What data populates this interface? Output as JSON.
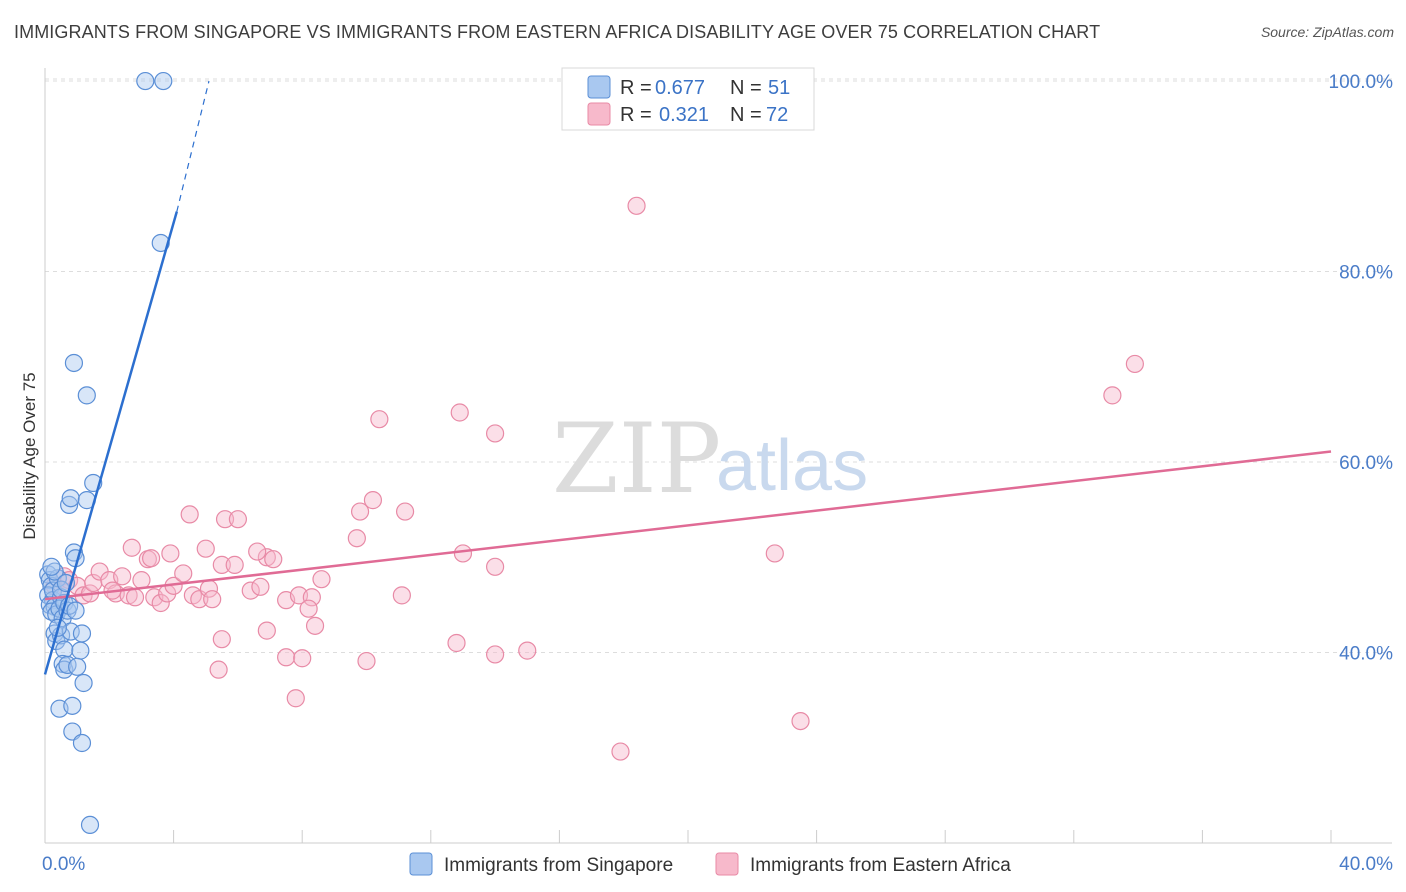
{
  "title": "IMMIGRANTS FROM SINGAPORE VS IMMIGRANTS FROM EASTERN AFRICA DISABILITY AGE OVER 75 CORRELATION CHART",
  "source": "Source: ZipAtlas.com",
  "watermark": {
    "zip": "ZIP",
    "atlas": "atlas"
  },
  "colors": {
    "blue_fill": "#a9c8f0",
    "blue_stroke": "#5b8fd6",
    "blue_line": "#2c6fcf",
    "pink_fill": "#f7b9cb",
    "pink_stroke": "#e88aa6",
    "pink_line": "#e06b95"
  },
  "legend": {
    "rows": [
      {
        "r_label": "R =",
        "r_value": "0.677",
        "n_label": "N =",
        "n_value": "51"
      },
      {
        "r_label": "R =",
        "r_value": "0.321",
        "n_label": "N =",
        "n_value": "72"
      }
    ]
  },
  "bottom_legend": [
    "Immigrants from Singapore",
    "Immigrants from Eastern Africa"
  ],
  "chart_data": {
    "type": "scatter",
    "title": "IMMIGRANTS FROM SINGAPORE VS IMMIGRANTS FROM EASTERN AFRICA DISABILITY AGE OVER 75 CORRELATION CHART",
    "xlabel": "",
    "ylabel": "Disability Age Over 75",
    "xlim": [
      0,
      40
    ],
    "ylim": [
      20,
      102
    ],
    "x_tick_labels": [
      "0.0%",
      "40.0%"
    ],
    "y_ticks": [
      40,
      60,
      80,
      100
    ],
    "y_tick_labels": [
      "40.0%",
      "60.0%",
      "80.0%",
      "100.0%"
    ],
    "grid": true,
    "series": [
      {
        "name": "Immigrants from Singapore",
        "R": 0.677,
        "N": 51,
        "trend": {
          "x0": 0.0,
          "y0": 37.7,
          "x1": 4.1,
          "y1": 86.3,
          "dash_to_x": 5.1,
          "dash_to_y": 100.0
        },
        "points": [
          [
            0.1,
            48.2
          ],
          [
            0.15,
            47.6
          ],
          [
            0.2,
            47.0
          ],
          [
            0.1,
            46.0
          ],
          [
            0.25,
            45.5
          ],
          [
            0.15,
            45.0
          ],
          [
            0.3,
            44.8
          ],
          [
            0.2,
            44.3
          ],
          [
            0.35,
            44.0
          ],
          [
            0.25,
            46.5
          ],
          [
            0.4,
            47.8
          ],
          [
            0.3,
            48.5
          ],
          [
            0.5,
            45.8
          ],
          [
            0.45,
            44.6
          ],
          [
            0.6,
            45.2
          ],
          [
            0.55,
            43.6
          ],
          [
            0.7,
            44.4
          ],
          [
            0.75,
            44.9
          ],
          [
            0.5,
            46.6
          ],
          [
            0.65,
            47.3
          ],
          [
            0.3,
            42.0
          ],
          [
            0.35,
            41.2
          ],
          [
            0.5,
            41.8
          ],
          [
            0.8,
            42.2
          ],
          [
            0.4,
            42.6
          ],
          [
            0.6,
            40.3
          ],
          [
            1.1,
            40.2
          ],
          [
            0.55,
            38.8
          ],
          [
            0.6,
            38.2
          ],
          [
            0.7,
            38.7
          ],
          [
            1.0,
            38.5
          ],
          [
            1.2,
            36.8
          ],
          [
            0.45,
            34.1
          ],
          [
            0.85,
            34.4
          ],
          [
            0.85,
            31.7
          ],
          [
            1.15,
            30.5
          ],
          [
            1.4,
            21.9
          ],
          [
            0.75,
            55.5
          ],
          [
            0.8,
            56.2
          ],
          [
            1.3,
            56.0
          ],
          [
            1.5,
            57.8
          ],
          [
            0.9,
            50.5
          ],
          [
            0.95,
            49.9
          ],
          [
            1.3,
            67.0
          ],
          [
            0.9,
            70.4
          ],
          [
            3.6,
            83.0
          ],
          [
            3.12,
            100.0
          ],
          [
            3.68,
            100.0
          ],
          [
            0.2,
            49.0
          ],
          [
            1.15,
            42.0
          ],
          [
            0.95,
            44.4
          ]
        ]
      },
      {
        "name": "Immigrants from Eastern Africa",
        "R": 0.321,
        "N": 72,
        "trend": {
          "x0": 0.0,
          "y0": 45.6,
          "x1": 40.0,
          "y1": 61.1
        },
        "points": [
          [
            0.3,
            47.0
          ],
          [
            0.5,
            46.5
          ],
          [
            0.6,
            48.0
          ],
          [
            0.75,
            47.6
          ],
          [
            1.0,
            47.0
          ],
          [
            1.2,
            46.0
          ],
          [
            1.4,
            46.2
          ],
          [
            1.5,
            47.3
          ],
          [
            1.7,
            48.5
          ],
          [
            2.0,
            47.6
          ],
          [
            2.2,
            46.2
          ],
          [
            2.4,
            48.0
          ],
          [
            2.6,
            46.0
          ],
          [
            2.8,
            45.8
          ],
          [
            3.0,
            47.6
          ],
          [
            3.2,
            49.8
          ],
          [
            3.4,
            45.8
          ],
          [
            3.6,
            45.2
          ],
          [
            3.8,
            46.2
          ],
          [
            4.0,
            47.0
          ],
          [
            4.3,
            48.3
          ],
          [
            4.6,
            46.0
          ],
          [
            4.8,
            45.6
          ],
          [
            5.1,
            46.7
          ],
          [
            5.5,
            49.2
          ],
          [
            5.9,
            49.2
          ],
          [
            6.4,
            46.5
          ],
          [
            6.7,
            46.9
          ],
          [
            6.9,
            50.0
          ],
          [
            7.1,
            49.8
          ],
          [
            7.5,
            45.5
          ],
          [
            7.9,
            46.0
          ],
          [
            8.3,
            45.8
          ],
          [
            8.6,
            47.7
          ],
          [
            2.7,
            51.0
          ],
          [
            3.3,
            49.9
          ],
          [
            3.9,
            50.4
          ],
          [
            5.0,
            50.9
          ],
          [
            5.6,
            54.0
          ],
          [
            6.0,
            54.0
          ],
          [
            6.6,
            50.6
          ],
          [
            4.5,
            54.5
          ],
          [
            9.7,
            52.0
          ],
          [
            9.8,
            54.8
          ],
          [
            10.2,
            56.0
          ],
          [
            11.2,
            54.8
          ],
          [
            13.0,
            50.4
          ],
          [
            14.0,
            49.0
          ],
          [
            10.4,
            64.5
          ],
          [
            12.9,
            65.2
          ],
          [
            14.0,
            63.0
          ],
          [
            18.4,
            86.9
          ],
          [
            33.2,
            67.0
          ],
          [
            33.9,
            70.3
          ],
          [
            22.7,
            50.4
          ],
          [
            5.5,
            41.4
          ],
          [
            6.9,
            42.3
          ],
          [
            8.4,
            42.8
          ],
          [
            12.8,
            41.0
          ],
          [
            14.0,
            39.8
          ],
          [
            15.0,
            40.2
          ],
          [
            5.4,
            38.2
          ],
          [
            7.5,
            39.5
          ],
          [
            8.0,
            39.4
          ],
          [
            10.0,
            39.1
          ],
          [
            7.8,
            35.2
          ],
          [
            23.5,
            32.8
          ],
          [
            17.9,
            29.6
          ],
          [
            11.1,
            46.0
          ],
          [
            8.2,
            44.6
          ],
          [
            2.1,
            46.5
          ],
          [
            5.2,
            45.6
          ]
        ]
      }
    ]
  }
}
